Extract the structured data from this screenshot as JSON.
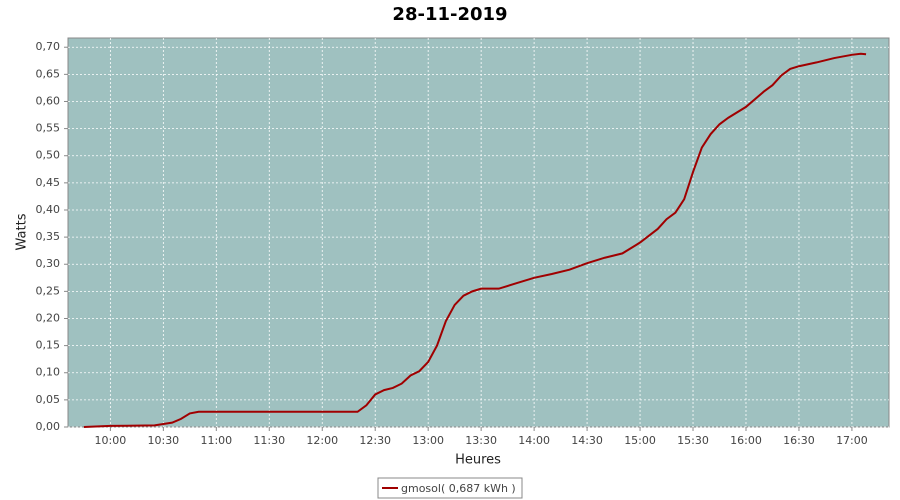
{
  "chart_data": {
    "type": "line",
    "title": "28-11-2019",
    "x_label": "Heures",
    "y_label": "Watts",
    "x": [
      "09:45",
      "10:00",
      "10:25",
      "10:35",
      "10:40",
      "10:45",
      "10:50",
      "12:00",
      "12:20",
      "12:25",
      "12:30",
      "12:35",
      "12:40",
      "12:45",
      "12:50",
      "12:55",
      "13:00",
      "13:05",
      "13:10",
      "13:15",
      "13:20",
      "13:25",
      "13:30",
      "13:40",
      "13:50",
      "14:00",
      "14:10",
      "14:20",
      "14:30",
      "14:40",
      "14:50",
      "15:00",
      "15:10",
      "15:15",
      "15:20",
      "15:25",
      "15:30",
      "15:35",
      "15:40",
      "15:45",
      "15:50",
      "16:00",
      "16:10",
      "16:15",
      "16:20",
      "16:25",
      "16:30",
      "16:40",
      "16:50",
      "17:00",
      "17:05",
      "17:08"
    ],
    "series": [
      {
        "name": "gmosol( 0,687 kWh )",
        "color": "#a00000",
        "values": [
          0,
          0.002,
          0.003,
          0.008,
          0.015,
          0.025,
          0.028,
          0.028,
          0.028,
          0.04,
          0.06,
          0.068,
          0.072,
          0.08,
          0.095,
          0.103,
          0.12,
          0.15,
          0.195,
          0.225,
          0.242,
          0.25,
          0.255,
          0.255,
          0.265,
          0.275,
          0.282,
          0.29,
          0.302,
          0.312,
          0.32,
          0.34,
          0.365,
          0.383,
          0.395,
          0.42,
          0.47,
          0.515,
          0.54,
          0.558,
          0.57,
          0.59,
          0.618,
          0.63,
          0.648,
          0.66,
          0.665,
          0.672,
          0.68,
          0.686,
          0.688,
          0.687
        ]
      }
    ],
    "xlim": [
      "09:36",
      "17:21"
    ],
    "xticks": [
      "10:00",
      "10:30",
      "11:00",
      "11:30",
      "12:00",
      "12:30",
      "13:00",
      "13:30",
      "14:00",
      "14:30",
      "15:00",
      "15:30",
      "16:00",
      "16:30",
      "17:00"
    ],
    "ylim": [
      0,
      0.717
    ],
    "yticks": [
      {
        "value": 0,
        "label": "0,00"
      },
      {
        "value": 0.05,
        "label": "0,05"
      },
      {
        "value": 0.1,
        "label": "0,10"
      },
      {
        "value": 0.15,
        "label": "0,15"
      },
      {
        "value": 0.2,
        "label": "0,20"
      },
      {
        "value": 0.25,
        "label": "0,25"
      },
      {
        "value": 0.3,
        "label": "0,30"
      },
      {
        "value": 0.35,
        "label": "0,35"
      },
      {
        "value": 0.4,
        "label": "0,40"
      },
      {
        "value": 0.45,
        "label": "0,45"
      },
      {
        "value": 0.5,
        "label": "0,50"
      },
      {
        "value": 0.55,
        "label": "0,55"
      },
      {
        "value": 0.6,
        "label": "0,60"
      },
      {
        "value": 0.65,
        "label": "0,65"
      },
      {
        "value": 0.7,
        "label": "0,70"
      }
    ],
    "grid": true,
    "plot_background": "#9fc1c0",
    "legend": "bottom"
  }
}
